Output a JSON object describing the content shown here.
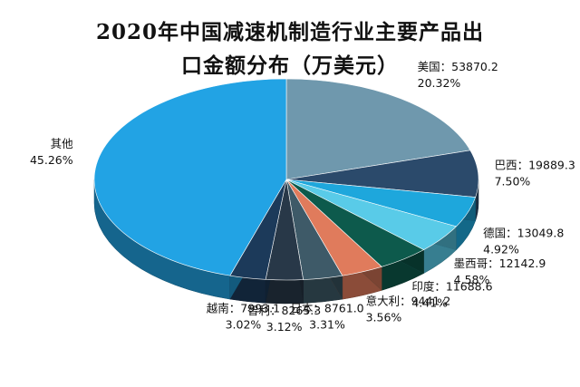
{
  "chart_data": {
    "type": "pie",
    "title_lines": [
      "2020年中国减速机制造行业主要产品出",
      "口金额分布（万美元）"
    ],
    "slices": [
      {
        "name": "美国",
        "value": "53870.2",
        "percent": 20.32,
        "percent_label": "20.32%",
        "color": "#6f98ad"
      },
      {
        "name": "巴西",
        "value": "19889.3",
        "percent": 7.5,
        "percent_label": "7.50%",
        "color": "#2b4a6b"
      },
      {
        "name": "德国",
        "value": "13049.8",
        "percent": 4.92,
        "percent_label": "4.92%",
        "color": "#1ea7dc"
      },
      {
        "name": "墨西哥",
        "value": "12142.9",
        "percent": 4.58,
        "percent_label": "4.58%",
        "color": "#59cbe8"
      },
      {
        "name": "印度",
        "value": "11688.6",
        "percent": 4.41,
        "percent_label": "4.41%",
        "color": "#0d5a4c"
      },
      {
        "name": "意大利",
        "value": "9441.2",
        "percent": 3.56,
        "percent_label": "3.56%",
        "color": "#e07b5c"
      },
      {
        "name": "日本",
        "value": "8761.0",
        "percent": 3.31,
        "percent_label": "3.31%",
        "color": "#3e5a68"
      },
      {
        "name": "智利",
        "value": "8265.3",
        "percent": 3.12,
        "percent_label": "3.12%",
        "color": "#283848"
      },
      {
        "name": "越南",
        "value": "7993.1",
        "percent": 3.02,
        "percent_label": "3.02%",
        "color": "#1c3a5a"
      },
      {
        "name": "其他",
        "value": "",
        "percent": 45.26,
        "percent_label": "45.26%",
        "color": "#22a3e4"
      }
    ]
  }
}
